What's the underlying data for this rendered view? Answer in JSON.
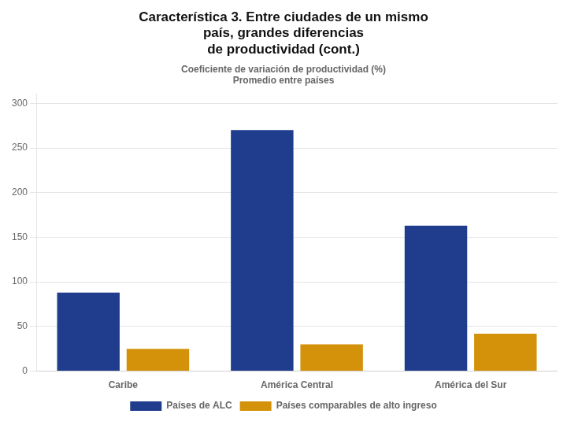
{
  "chart_data": {
    "type": "bar",
    "title": "Característica 3. Entre ciudades de un mismo\npaís, grandes diferencias\nde productividad (cont.)",
    "subtitle": "Coeficiente de variación de productividad (%)\nPromedio entre países",
    "categories": [
      "Caribe",
      "América Central",
      "América del Sur"
    ],
    "series": [
      {
        "name": "Países de ALC",
        "color": "#1F3D8C",
        "values": [
          88,
          270,
          163
        ]
      },
      {
        "name": "Países comparables de alto ingreso",
        "color": "#D4920A",
        "values": [
          25,
          30,
          42
        ]
      }
    ],
    "ylim": [
      0,
      310
    ],
    "yticks": [
      0,
      50,
      100,
      150,
      200,
      250,
      300
    ],
    "grid": true,
    "legend": "bottom"
  }
}
